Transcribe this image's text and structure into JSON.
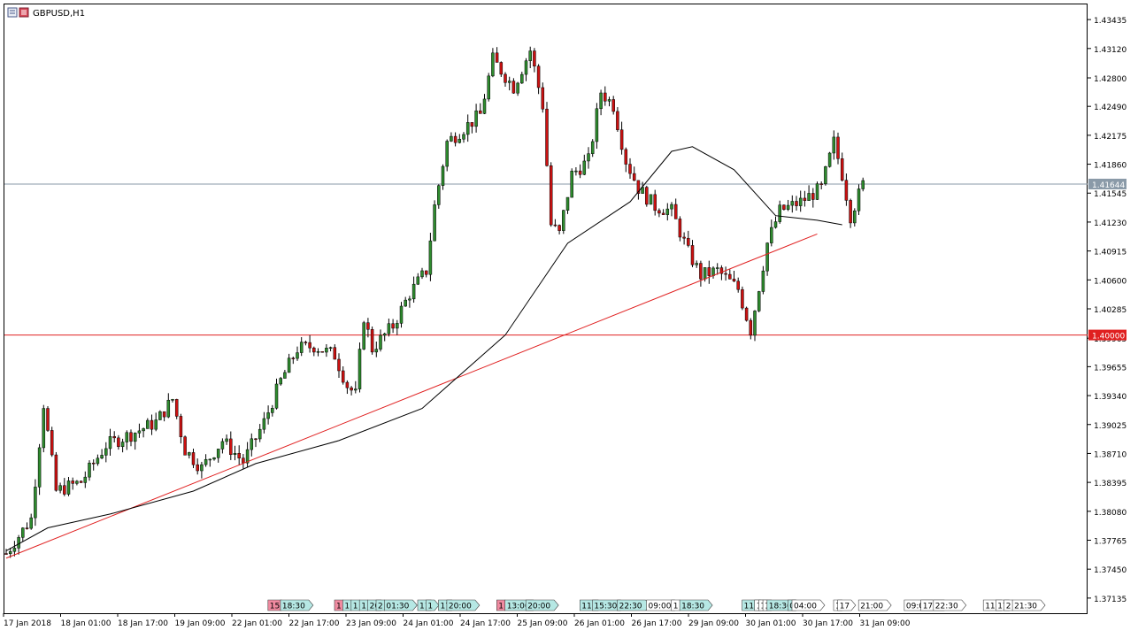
{
  "symbol": {
    "icon": "chart-window-icon",
    "label": "GBPUSD,H1"
  },
  "colors": {
    "bull": "#2e8b2e",
    "bear": "#cc1111",
    "wick": "#000000",
    "trend": "#e02020",
    "level": "#e02020",
    "ma": "#000000",
    "bid_line": "#8a9aa8",
    "bid_tag": "#8a9aa8",
    "level_tag": "#e02020",
    "event_pink": "#f08aa0",
    "event_teal": "#b6e8e4"
  },
  "chart_data": {
    "type": "candlestick",
    "timeframe": "H1",
    "ylim": [
      1.3697,
      1.436
    ],
    "y_ticks": [
      "1.43435",
      "1.43120",
      "1.42800",
      "1.42490",
      "1.42175",
      "1.41860",
      "1.41545",
      "1.41230",
      "1.40915",
      "1.40600",
      "1.40285",
      "1.39965",
      "1.39655",
      "1.39340",
      "1.39025",
      "1.38710",
      "1.38395",
      "1.38080",
      "1.37765",
      "1.37450",
      "1.37135"
    ],
    "x_ticks": [
      "17 Jan 2018",
      "18 Jan 01:00",
      "18 Jan 17:00",
      "19 Jan 09:00",
      "22 Jan 01:00",
      "22 Jan 17:00",
      "23 Jan 09:00",
      "24 Jan 01:00",
      "24 Jan 17:00",
      "25 Jan 09:00",
      "26 Jan 01:00",
      "26 Jan 17:00",
      "29 Jan 09:00",
      "30 Jan 01:00",
      "30 Jan 17:00",
      "31 Jan 09:00"
    ],
    "price_tags": {
      "bid": "1.41644",
      "level": "1.40000"
    },
    "horizontal_levels": [
      1.4,
      1.41644
    ],
    "trendline": {
      "from": [
        0,
        1.3757
      ],
      "to": [
        195,
        1.411
      ]
    },
    "moving_average_path": [
      [
        0,
        1.3765
      ],
      [
        10,
        1.379
      ],
      [
        25,
        1.3805
      ],
      [
        45,
        1.383
      ],
      [
        60,
        1.386
      ],
      [
        80,
        1.3885
      ],
      [
        100,
        1.392
      ],
      [
        120,
        1.4
      ],
      [
        135,
        1.41
      ],
      [
        150,
        1.4145
      ],
      [
        160,
        1.42
      ],
      [
        165,
        1.4205
      ],
      [
        175,
        1.418
      ],
      [
        185,
        1.413
      ],
      [
        195,
        1.4125
      ],
      [
        201,
        1.412
      ]
    ],
    "price_path": [
      [
        0,
        1.3762
      ],
      [
        6,
        1.38
      ],
      [
        9,
        1.3925
      ],
      [
        12,
        1.383
      ],
      [
        18,
        1.384
      ],
      [
        24,
        1.388
      ],
      [
        30,
        1.3892
      ],
      [
        36,
        1.3905
      ],
      [
        40,
        1.393
      ],
      [
        43,
        1.3875
      ],
      [
        47,
        1.3855
      ],
      [
        52,
        1.3885
      ],
      [
        57,
        1.3862
      ],
      [
        62,
        1.3905
      ],
      [
        66,
        1.395
      ],
      [
        70,
        1.3985
      ],
      [
        74,
        1.3988
      ],
      [
        79,
        1.3978
      ],
      [
        82,
        1.3945
      ],
      [
        84,
        1.3935
      ],
      [
        86,
        1.402
      ],
      [
        88,
        1.3985
      ],
      [
        93,
        1.401
      ],
      [
        97,
        1.4045
      ],
      [
        101,
        1.407
      ],
      [
        103,
        1.414
      ],
      [
        106,
        1.421
      ],
      [
        110,
        1.4225
      ],
      [
        114,
        1.424
      ],
      [
        117,
        1.43
      ],
      [
        122,
        1.427
      ],
      [
        126,
        1.431
      ],
      [
        129,
        1.425
      ],
      [
        131,
        1.412
      ],
      [
        133,
        1.411
      ],
      [
        136,
        1.4175
      ],
      [
        140,
        1.419
      ],
      [
        143,
        1.4265
      ],
      [
        146,
        1.425
      ],
      [
        149,
        1.419
      ],
      [
        152,
        1.416
      ],
      [
        156,
        1.414
      ],
      [
        160,
        1.4135
      ],
      [
        164,
        1.409
      ],
      [
        167,
        1.4065
      ],
      [
        171,
        1.407
      ],
      [
        176,
        1.405
      ],
      [
        179,
        1.4005
      ],
      [
        183,
        1.41
      ],
      [
        186,
        1.4135
      ],
      [
        191,
        1.4145
      ],
      [
        196,
        1.416
      ],
      [
        199,
        1.421
      ],
      [
        201,
        1.4175
      ],
      [
        203,
        1.413
      ],
      [
        206,
        1.4164
      ]
    ],
    "event_tags": [
      {
        "slot": 64,
        "text": "15",
        "kind": "pink"
      },
      {
        "slot": 67,
        "text": "18:30",
        "kind": "teal"
      },
      {
        "slot": 80,
        "text": "1",
        "kind": "pink"
      },
      {
        "slot": 82,
        "text": "1",
        "kind": "teal"
      },
      {
        "slot": 84,
        "text": "1",
        "kind": "teal"
      },
      {
        "slot": 86,
        "text": "1",
        "kind": "teal"
      },
      {
        "slot": 88,
        "text": "20",
        "kind": "teal"
      },
      {
        "slot": 90,
        "text": "2",
        "kind": "teal"
      },
      {
        "slot": 92,
        "text": "01:30",
        "kind": "teal"
      },
      {
        "slot": 100,
        "text": "11",
        "kind": "teal"
      },
      {
        "slot": 102,
        "text": "1",
        "kind": "teal"
      },
      {
        "slot": 105,
        "text": "17",
        "kind": "teal"
      },
      {
        "slot": 107,
        "text": "20:00",
        "kind": "teal"
      },
      {
        "slot": 119,
        "text": "1",
        "kind": "pink"
      },
      {
        "slot": 121,
        "text": "13:00",
        "kind": "teal"
      },
      {
        "slot": 126,
        "text": "20:00",
        "kind": "teal"
      },
      {
        "slot": 139,
        "text": "11:",
        "kind": "teal"
      },
      {
        "slot": 142,
        "text": "15:30",
        "kind": "teal"
      },
      {
        "slot": 148,
        "text": "22:30",
        "kind": "teal"
      },
      {
        "slot": 155,
        "text": "09:00",
        "kind": "white"
      },
      {
        "slot": 161,
        "text": "1",
        "kind": "white"
      },
      {
        "slot": 163,
        "text": "18:30",
        "kind": "teal"
      },
      {
        "slot": 178,
        "text": "11:",
        "kind": "teal"
      },
      {
        "slot": 181,
        "text": "1",
        "kind": "white"
      },
      {
        "slot": 182,
        "text": "1",
        "kind": "white"
      },
      {
        "slot": 183,
        "text": "1",
        "kind": "white"
      },
      {
        "slot": 184,
        "text": "18:30",
        "kind": "teal"
      },
      {
        "slot": 189,
        "text": "0",
        "kind": "teal"
      },
      {
        "slot": 190,
        "text": "04:00",
        "kind": "white"
      },
      {
        "slot": 200,
        "text": "1",
        "kind": "white"
      },
      {
        "slot": 201,
        "text": "17",
        "kind": "white"
      },
      {
        "slot": 206,
        "text": "21:00",
        "kind": "white"
      },
      {
        "slot": 217,
        "text": "09:00",
        "kind": "white"
      },
      {
        "slot": 221,
        "text": "17:3",
        "kind": "white"
      },
      {
        "slot": 224,
        "text": "22:30",
        "kind": "white"
      },
      {
        "slot": 236,
        "text": "11:",
        "kind": "white"
      },
      {
        "slot": 239,
        "text": "17",
        "kind": "white"
      },
      {
        "slot": 241,
        "text": "2",
        "kind": "white"
      },
      {
        "slot": 243,
        "text": "21:30",
        "kind": "white"
      }
    ]
  }
}
